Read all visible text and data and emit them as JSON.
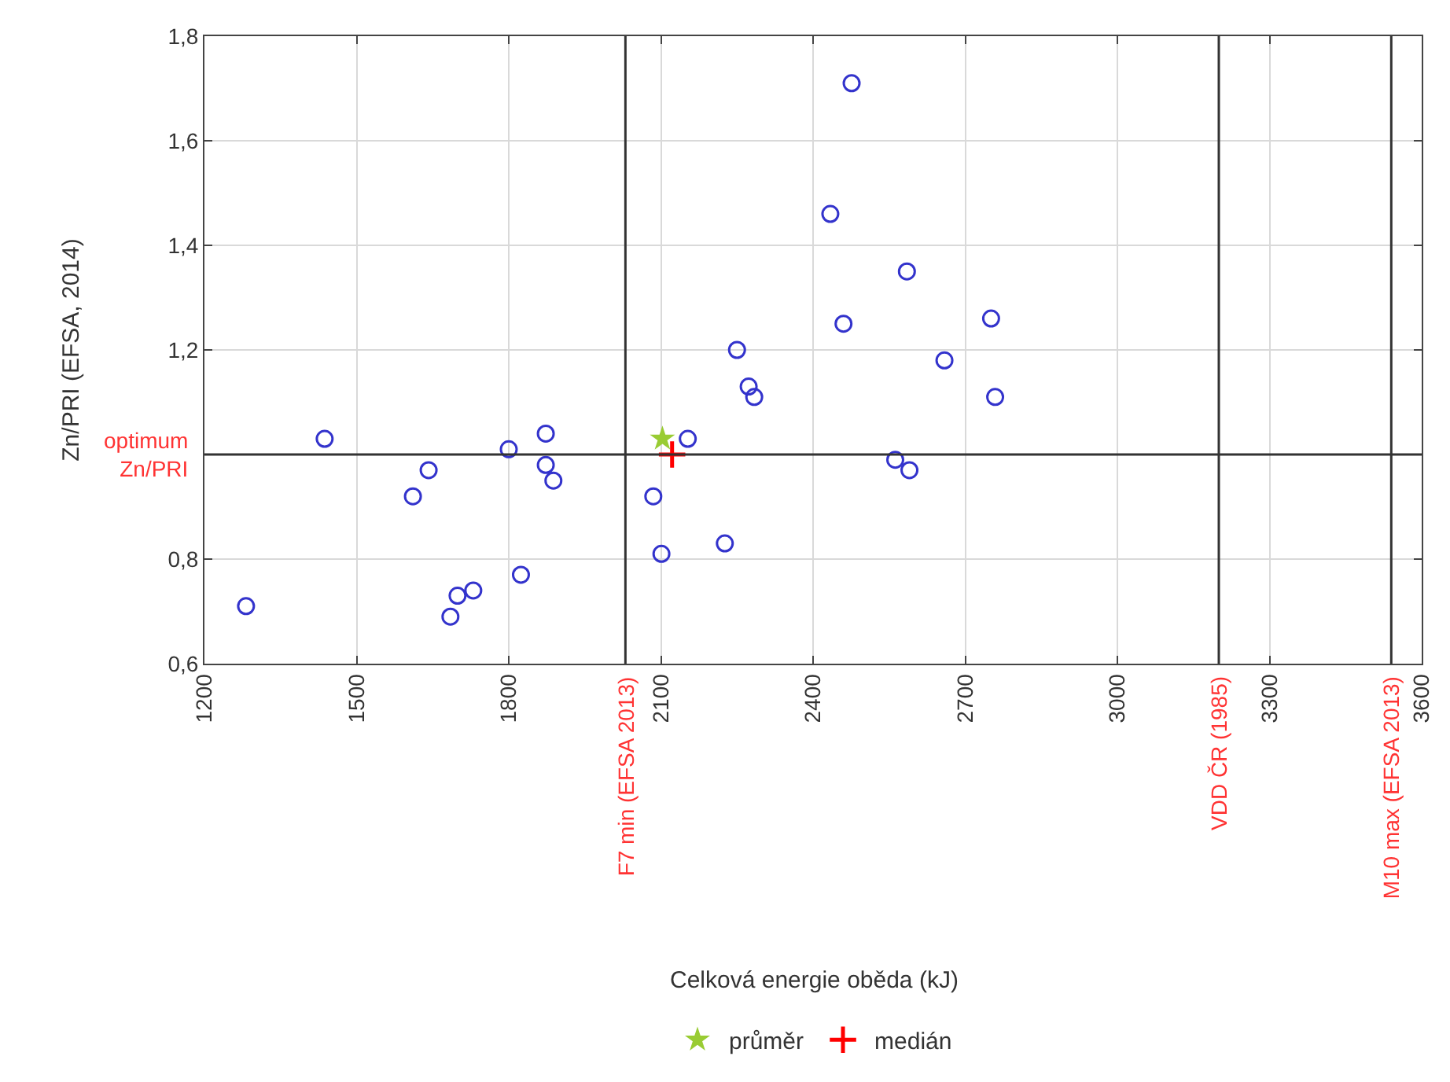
{
  "chart_data": {
    "type": "scatter",
    "annotations": [
      "Celková energie oběda (kJ)"
    ],
    "ylabel": "Zn/PRI (EFSA, 2014)",
    "xlim": [
      1200,
      3600
    ],
    "xticks": [
      1200,
      1500,
      1800,
      2100,
      2400,
      2700,
      3000,
      3300,
      3600
    ],
    "ylim": [
      0.6,
      1.8
    ],
    "yticks": [
      {
        "value": 0.6,
        "label": "0,6"
      },
      {
        "value": 0.8,
        "label": "0,8"
      },
      {
        "value": 1.0,
        "label": null
      },
      {
        "value": 1.2,
        "label": "1,2"
      },
      {
        "value": 1.4,
        "label": "1,4"
      },
      {
        "value": 1.6,
        "label": "1,6"
      },
      {
        "value": 1.8,
        "label": "1,8"
      }
    ],
    "grid": true,
    "legend": "bottom",
    "series": [
      {
        "color": "#3333cc",
        "marker": "circle",
        "x": [
          1282,
          1437,
          1642,
          1611,
          1800,
          1873,
          1873,
          1888,
          1824,
          1699,
          1730,
          1685,
          2085,
          2101,
          2153,
          2226,
          2250,
          2273,
          2284,
          2476,
          2434,
          2585,
          2460,
          2751,
          2659,
          2759,
          2562,
          2590
        ],
        "values": [
          0.71,
          1.03,
          0.97,
          0.92,
          1.01,
          1.04,
          0.98,
          0.95,
          0.77,
          0.73,
          0.74,
          0.69,
          0.92,
          0.81,
          1.03,
          0.83,
          1.2,
          1.13,
          1.11,
          1.71,
          1.46,
          1.35,
          1.25,
          1.26,
          1.18,
          1.11,
          0.99,
          0.97
        ]
      },
      {
        "name": "průměr",
        "color": "#99cc33",
        "marker": "star",
        "x": [
          2103
        ],
        "values": [
          1.03
        ]
      },
      {
        "name": "medián",
        "color": "#ff0000",
        "marker": "cross",
        "x": [
          2122
        ],
        "values": [
          1.0
        ]
      }
    ],
    "ref_lines": [
      {
        "axis": "y",
        "value": 1.0,
        "label": "optimum\nZn/PRI",
        "color": "#333333"
      },
      {
        "axis": "x",
        "value": 2030,
        "label": "F7 min (EFSA 2013)",
        "color": "#333333"
      },
      {
        "axis": "x",
        "value": 3200,
        "label": "VDD ČR (1985)",
        "color": "#333333"
      },
      {
        "axis": "x",
        "value": 3540,
        "label": "M10 max (EFSA 2013)",
        "color": "#333333"
      }
    ]
  }
}
